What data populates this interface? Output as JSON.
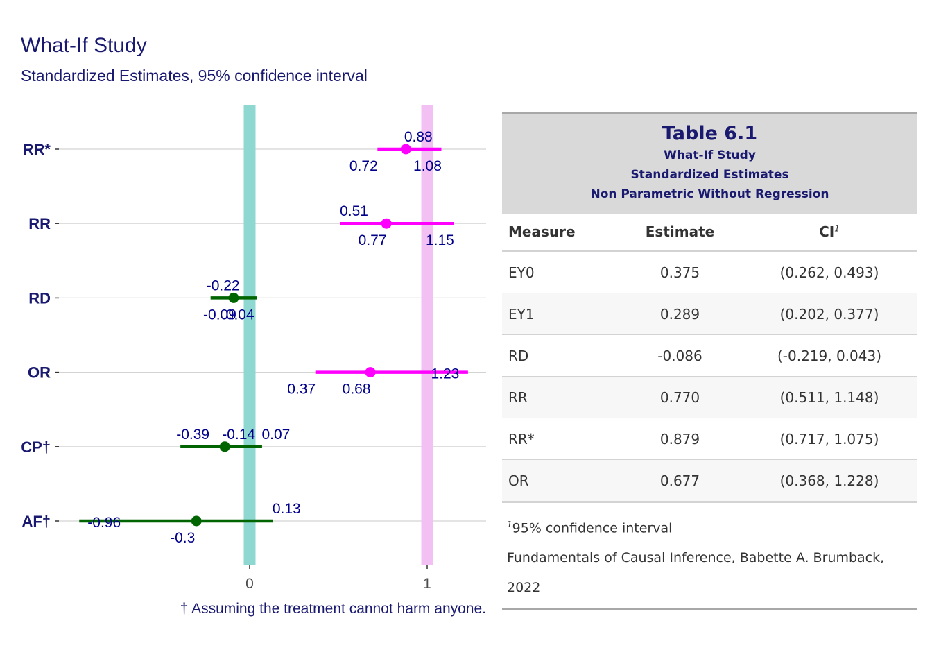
{
  "chart_data": {
    "type": "scatter",
    "title": "What-If Study",
    "subtitle": "Standardized Estimates, 95% confidence interval",
    "caption": "† Assuming the treatment cannot harm anyone.",
    "xticks": [
      "0",
      "1"
    ],
    "xlim": [
      -0.97,
      1.35
    ],
    "reference_lines": [
      0,
      1
    ],
    "colors": {
      "ratio": "#ff00ff",
      "difference": "#006400",
      "ref0": "#8fd8d2",
      "ref1": "#f3c0f3",
      "label": "#00008b",
      "axis_text": "#191970"
    },
    "measures": [
      {
        "name": "RR*",
        "est": 0.88,
        "lo": 0.72,
        "hi": 1.08,
        "group": "ratio",
        "est_label": "0.88",
        "lo_label": "0.72",
        "hi_label": "1.08"
      },
      {
        "name": "RR",
        "est": 0.77,
        "lo": 0.51,
        "hi": 1.15,
        "group": "ratio",
        "est_label": "0.77",
        "lo_label": "0.51",
        "hi_label": "1.15"
      },
      {
        "name": "RD",
        "est": -0.09,
        "lo": -0.22,
        "hi": 0.04,
        "group": "difference",
        "est_label": "-0.09",
        "lo_label": "-0.22",
        "hi_label": "0.04"
      },
      {
        "name": "OR",
        "est": 0.68,
        "lo": 0.37,
        "hi": 1.23,
        "group": "ratio",
        "est_label": "0.68",
        "lo_label": "0.37",
        "hi_label": "1.23"
      },
      {
        "name": "CP†",
        "est": -0.14,
        "lo": -0.39,
        "hi": 0.07,
        "group": "difference",
        "est_label": "-0.14",
        "lo_label": "-0.39",
        "hi_label": "0.07"
      },
      {
        "name": "AF†",
        "est": -0.3,
        "lo": -0.96,
        "hi": 0.13,
        "group": "difference",
        "est_label": "-0.3",
        "lo_label": "-0.96",
        "hi_label": "0.13"
      }
    ]
  },
  "table": {
    "title": "Table 6.1",
    "subtitles": [
      "What-If Study",
      "Standardized Estimates",
      "Non Parametric Without Regression"
    ],
    "columns": {
      "measure": "Measure",
      "estimate": "Estimate",
      "ci": "CI",
      "ci_mark": "1"
    },
    "rows": [
      {
        "measure": "EY0",
        "estimate": "0.375",
        "ci": "(0.262, 0.493)"
      },
      {
        "measure": "EY1",
        "estimate": "0.289",
        "ci": "(0.202, 0.377)"
      },
      {
        "measure": "RD",
        "estimate": "-0.086",
        "ci": "(-0.219, 0.043)"
      },
      {
        "measure": "RR",
        "estimate": "0.770",
        "ci": "(0.511, 1.148)"
      },
      {
        "measure": "RR*",
        "estimate": "0.879",
        "ci": "(0.717, 1.075)"
      },
      {
        "measure": "OR",
        "estimate": "0.677",
        "ci": "(0.368, 1.228)"
      }
    ],
    "footnote_mark": "1",
    "footnote": "95% confidence interval",
    "source": "Fundamentals of Causal Inference, Babette A. Brumback, 2022"
  }
}
